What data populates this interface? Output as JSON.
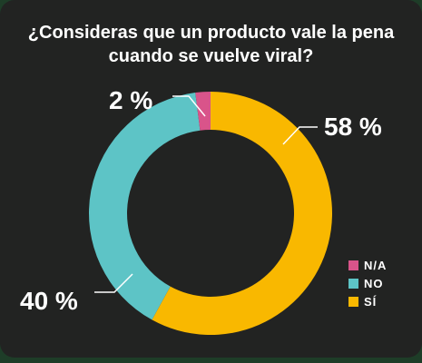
{
  "title": "¿Consideras que un producto vale la pena cuando se vuelve viral?",
  "colors": {
    "background": "#222322",
    "si": "#f9b800",
    "no": "#5dc4c6",
    "na": "#d9548a"
  },
  "chart_data": {
    "type": "pie",
    "title": "¿Consideras que un producto vale la pena cuando se vuelve viral?",
    "categories": [
      "SÍ",
      "NO",
      "N/A"
    ],
    "values": [
      58,
      40,
      2
    ],
    "data_labels": [
      "58 %",
      "40 %",
      "2 %"
    ],
    "legend": [
      "N/A",
      "NO",
      "SÍ"
    ],
    "legend_position": "right",
    "donut": true
  }
}
